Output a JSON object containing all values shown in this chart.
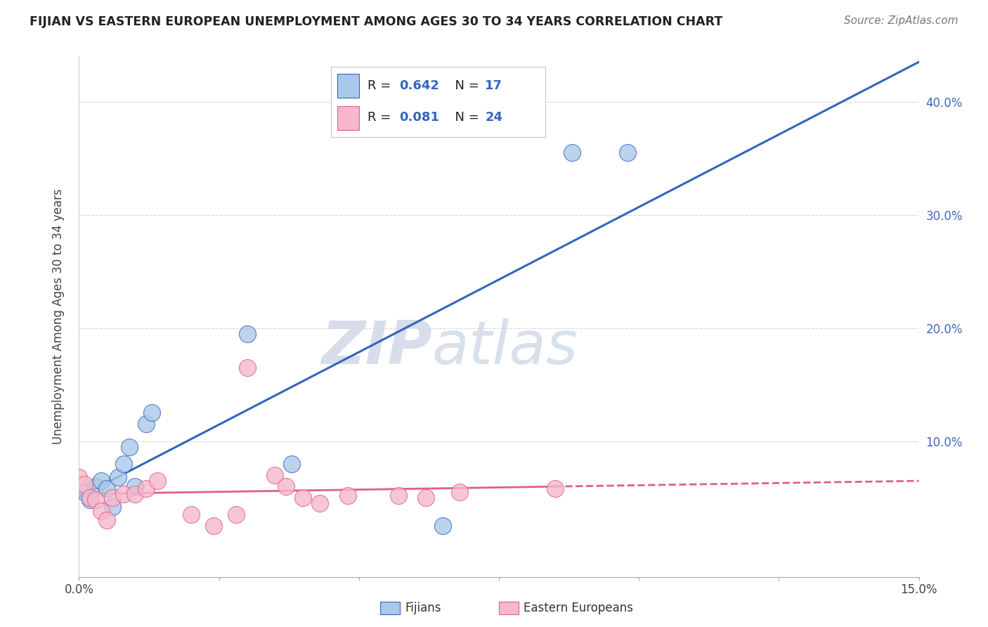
{
  "title": "FIJIAN VS EASTERN EUROPEAN UNEMPLOYMENT AMONG AGES 30 TO 34 YEARS CORRELATION CHART",
  "source": "Source: ZipAtlas.com",
  "ylabel": "Unemployment Among Ages 30 to 34 years",
  "xlim": [
    0.0,
    0.15
  ],
  "ylim": [
    -0.02,
    0.44
  ],
  "xticks": [
    0.0,
    0.025,
    0.05,
    0.075,
    0.1,
    0.125,
    0.15
  ],
  "xticklabels": [
    "0.0%",
    "",
    "",
    "",
    "",
    "",
    "15.0%"
  ],
  "yticks": [
    0.0,
    0.1,
    0.2,
    0.3,
    0.4
  ],
  "yticklabels": [
    "",
    "10.0%",
    "20.0%",
    "30.0%",
    "40.0%"
  ],
  "fijians_x": [
    0.001,
    0.002,
    0.003,
    0.004,
    0.005,
    0.006,
    0.007,
    0.008,
    0.009,
    0.01,
    0.012,
    0.013,
    0.03,
    0.038,
    0.065,
    0.088,
    0.098
  ],
  "fijians_y": [
    0.055,
    0.048,
    0.06,
    0.065,
    0.058,
    0.042,
    0.068,
    0.08,
    0.095,
    0.06,
    0.115,
    0.125,
    0.195,
    0.08,
    0.025,
    0.355,
    0.355
  ],
  "eastern_x": [
    0.0,
    0.001,
    0.002,
    0.003,
    0.004,
    0.005,
    0.006,
    0.008,
    0.01,
    0.012,
    0.014,
    0.02,
    0.024,
    0.028,
    0.03,
    0.035,
    0.037,
    0.04,
    0.043,
    0.048,
    0.057,
    0.062,
    0.068,
    0.085
  ],
  "eastern_y": [
    0.068,
    0.062,
    0.05,
    0.048,
    0.038,
    0.03,
    0.05,
    0.053,
    0.053,
    0.058,
    0.065,
    0.035,
    0.025,
    0.035,
    0.165,
    0.07,
    0.06,
    0.05,
    0.045,
    0.052,
    0.052,
    0.05,
    0.055,
    0.058
  ],
  "fijian_R": 0.642,
  "fijian_N": 17,
  "eastern_R": 0.081,
  "eastern_N": 24,
  "fijian_color": "#aac8e8",
  "eastern_color": "#f5b8cc",
  "fijian_line_color": "#3366bb",
  "eastern_line_color": "#e06080",
  "watermark_zip": "ZIP",
  "watermark_atlas": "atlas",
  "background_color": "#ffffff",
  "grid_color": "#cccccc",
  "legend_border_color": "#c8c8d8"
}
